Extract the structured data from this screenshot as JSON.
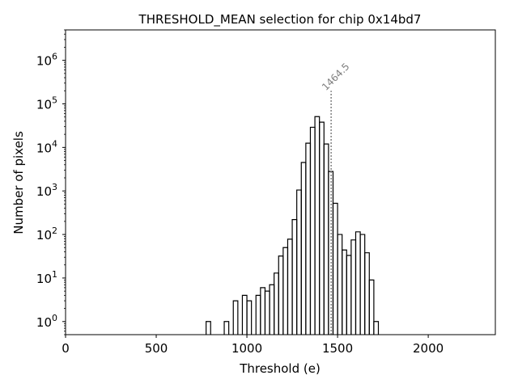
{
  "chart_data": {
    "type": "histogram",
    "title": "THRESHOLD_MEAN selection for chip 0x14bd7",
    "xlabel": "Threshold (e)",
    "ylabel": "Number of pixels",
    "x_scale": "linear",
    "y_scale": "log",
    "xlim": [
      0,
      2370
    ],
    "ylim": [
      0.5,
      5000000
    ],
    "x_ticks": [
      0,
      500,
      1000,
      1500,
      2000
    ],
    "x_tick_labels": [
      "0",
      "500",
      "1000",
      "1500",
      "2000"
    ],
    "y_ticks": [
      1,
      10,
      100,
      1000,
      10000,
      100000,
      1000000
    ],
    "y_tick_labels": [
      {
        "base": "10",
        "exp": "0"
      },
      {
        "base": "10",
        "exp": "1"
      },
      {
        "base": "10",
        "exp": "2"
      },
      {
        "base": "10",
        "exp": "3"
      },
      {
        "base": "10",
        "exp": "4"
      },
      {
        "base": "10",
        "exp": "5"
      },
      {
        "base": "10",
        "exp": "6"
      }
    ],
    "grid": false,
    "bin_width": 25,
    "bins": [
      {
        "x0": 775,
        "count": 1
      },
      {
        "x0": 800,
        "count": 0
      },
      {
        "x0": 825,
        "count": 0
      },
      {
        "x0": 850,
        "count": 0
      },
      {
        "x0": 875,
        "count": 1
      },
      {
        "x0": 900,
        "count": 0
      },
      {
        "x0": 925,
        "count": 3
      },
      {
        "x0": 950,
        "count": 0
      },
      {
        "x0": 975,
        "count": 4
      },
      {
        "x0": 1000,
        "count": 3
      },
      {
        "x0": 1025,
        "count": 0
      },
      {
        "x0": 1050,
        "count": 4
      },
      {
        "x0": 1075,
        "count": 6
      },
      {
        "x0": 1100,
        "count": 5
      },
      {
        "x0": 1125,
        "count": 7
      },
      {
        "x0": 1150,
        "count": 13
      },
      {
        "x0": 1175,
        "count": 32
      },
      {
        "x0": 1200,
        "count": 50
      },
      {
        "x0": 1225,
        "count": 78
      },
      {
        "x0": 1250,
        "count": 220
      },
      {
        "x0": 1275,
        "count": 1050
      },
      {
        "x0": 1300,
        "count": 4500
      },
      {
        "x0": 1325,
        "count": 12500
      },
      {
        "x0": 1350,
        "count": 29000
      },
      {
        "x0": 1375,
        "count": 51000
      },
      {
        "x0": 1400,
        "count": 38000
      },
      {
        "x0": 1425,
        "count": 12000
      },
      {
        "x0": 1450,
        "count": 2800
      },
      {
        "x0": 1475,
        "count": 520
      },
      {
        "x0": 1500,
        "count": 100
      },
      {
        "x0": 1525,
        "count": 44
      },
      {
        "x0": 1550,
        "count": 33
      },
      {
        "x0": 1575,
        "count": 75
      },
      {
        "x0": 1600,
        "count": 115
      },
      {
        "x0": 1625,
        "count": 100
      },
      {
        "x0": 1650,
        "count": 38
      },
      {
        "x0": 1675,
        "count": 9
      },
      {
        "x0": 1700,
        "count": 1
      }
    ],
    "annotation": {
      "x": 1464.5,
      "label": "1464.5",
      "line_top": 200000,
      "style": "dotted",
      "color": "#808080"
    }
  }
}
